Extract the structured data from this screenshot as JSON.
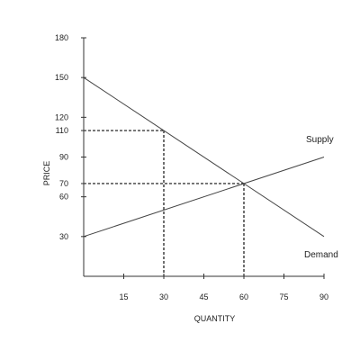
{
  "chart_data": {
    "type": "line",
    "title": "",
    "xlabel": "QUANTITY",
    "ylabel": "PRICE",
    "xlim": [
      0,
      90
    ],
    "ylim": [
      0,
      180
    ],
    "x_ticks": [
      15,
      30,
      45,
      60,
      75,
      90
    ],
    "y_ticks": [
      30,
      60,
      70,
      90,
      110,
      120,
      150,
      180
    ],
    "grid": false,
    "series": [
      {
        "name": "Supply",
        "x": [
          0,
          90
        ],
        "y": [
          30,
          90
        ]
      },
      {
        "name": "Demand",
        "x": [
          0,
          90
        ],
        "y": [
          150,
          30
        ]
      }
    ],
    "reference_lines": [
      {
        "x": 30,
        "y": 110
      },
      {
        "x": 60,
        "y": 70
      }
    ]
  }
}
